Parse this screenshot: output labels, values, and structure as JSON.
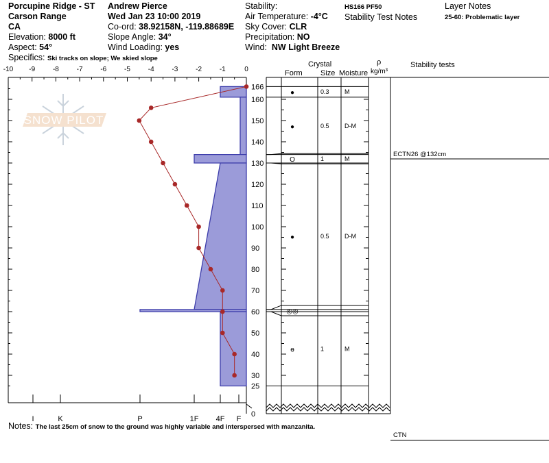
{
  "header": {
    "location": "Porcupine Ridge - ST",
    "range": "Carson Range",
    "state": "CA",
    "elevation_label": "Elevation:",
    "elevation": "8000 ft",
    "aspect_label": "Aspect:",
    "aspect": "54°",
    "observer": "Andrew Pierce",
    "datetime": "Wed Jan 23 10:00 2019",
    "coord_label": "Co-ord:",
    "coord": "38.92158N, -119.88689E",
    "slope_label": "Slope Angle:",
    "slope": "34°",
    "wind_loading_label": "Wind Loading:",
    "wind_loading": "yes",
    "stability_label": "Stability:",
    "air_temp_label": "Air Temperature:",
    "air_temp": "-4°C",
    "sky_label": "Sky Cover:",
    "sky": "CLR",
    "precip_label": "Precipitation:",
    "precip": "NO",
    "wind_label": "Wind:",
    "wind": "NW Light Breeze",
    "hs_pf": "HS166 PF50",
    "stability_test_notes_label": "Stability Test Notes",
    "layer_notes_label": "Layer Notes",
    "layer_note": "25-60: Problematic layer",
    "specifics_label": "Specifics:",
    "specifics": "Ski tracks on slope; We skied slope"
  },
  "notes": {
    "label": "Notes:",
    "text": "The last 25cm of snow to the ground was highly variable and interspersed with manzanita."
  },
  "watermark": "SNOW PILOT",
  "columns": {
    "crystal": "Crystal",
    "form": "Form",
    "size": "Size",
    "moisture": "Moisture",
    "rho": "ρ",
    "density_unit": "kg/m³",
    "stability_tests": "Stability tests"
  },
  "stability_tests": [
    {
      "label": "ECTN26 @132cm",
      "depth": 132
    }
  ],
  "ctn_label": "CTN",
  "colors": {
    "hardness_fill": "#9b9bd9",
    "hardness_stroke": "#3c3caa",
    "temperature": "#a82828"
  },
  "chart_data": {
    "type": "snow-profile",
    "temperature_axis": {
      "min": -10,
      "max": 0,
      "ticks": [
        "-10",
        "-9",
        "-8",
        "-7",
        "-6",
        "-5",
        "-4",
        "-3",
        "-2",
        "-1",
        "0"
      ]
    },
    "depth_axis": {
      "unit": "cm",
      "max": 166,
      "ticks": [
        "166",
        "160",
        "150",
        "140",
        "130",
        "120",
        "110",
        "100",
        "90",
        "80",
        "70",
        "60",
        "50",
        "40",
        "30",
        "25",
        "0"
      ]
    },
    "hardness_axis": {
      "ticks": [
        "I",
        "K",
        "P",
        "1F",
        "4F",
        "F"
      ]
    },
    "temperature_profile": [
      {
        "depth": 166,
        "temp": 0
      },
      {
        "depth": 156,
        "temp": -4
      },
      {
        "depth": 150,
        "temp": -4.5
      },
      {
        "depth": 140,
        "temp": -4
      },
      {
        "depth": 130,
        "temp": -3.5
      },
      {
        "depth": 120,
        "temp": -3
      },
      {
        "depth": 110,
        "temp": -2.5
      },
      {
        "depth": 100,
        "temp": -2
      },
      {
        "depth": 90,
        "temp": -2
      },
      {
        "depth": 80,
        "temp": -1.5
      },
      {
        "depth": 70,
        "temp": -1
      },
      {
        "depth": 60,
        "temp": -1
      },
      {
        "depth": 50,
        "temp": -1
      },
      {
        "depth": 40,
        "temp": -0.5
      },
      {
        "depth": 30,
        "temp": -0.5
      }
    ],
    "layers": [
      {
        "top": 166,
        "bottom": 161,
        "hardness_top": "4F",
        "hardness_bottom": "4F",
        "form_icon": "wet-grain-icon",
        "glyph": "●",
        "size": "0.3",
        "moisture": "M"
      },
      {
        "top": 161,
        "bottom": 134,
        "hardness_top": "F-",
        "hardness_bottom": "F-",
        "form_icon": "rounded-grain-icon",
        "glyph": "●",
        "size": "0.5",
        "moisture": "D-M"
      },
      {
        "top": 134,
        "bottom": 130,
        "hardness_top": "1F",
        "hardness_bottom": "1F",
        "form_icon": "melt-grain-icon",
        "glyph": "O",
        "size": "1",
        "moisture": "M"
      },
      {
        "top": 130,
        "bottom": 61,
        "hardness_top": "4F",
        "hardness_bottom": "1F",
        "form_icon": "rounded-grain-icon",
        "glyph": "●",
        "size": "0.5",
        "moisture": "D-M"
      },
      {
        "top": 61,
        "bottom": 60,
        "hardness_top": "P",
        "hardness_bottom": "P",
        "form_icon": "melt-freeze-cluster-icon",
        "glyph": "◎◎",
        "size": "",
        "moisture": ""
      },
      {
        "top": 60,
        "bottom": 25,
        "hardness_top": "4F",
        "hardness_bottom": "4F",
        "form_icon": "faceted-rounded-icon",
        "glyph": "ɵ",
        "size": "1",
        "moisture": "M"
      }
    ]
  }
}
